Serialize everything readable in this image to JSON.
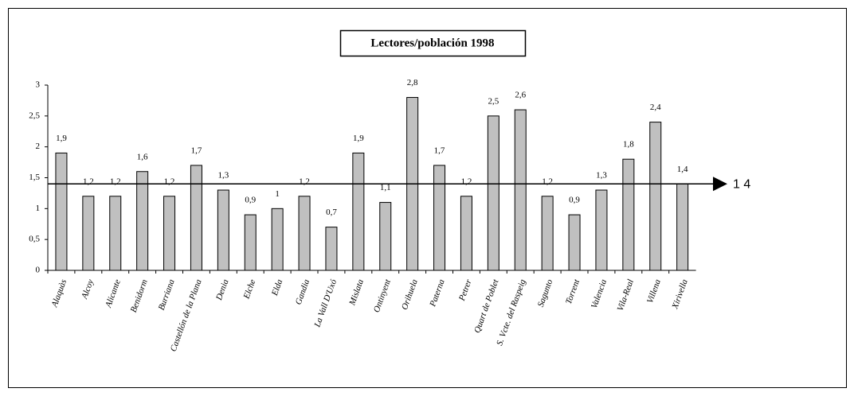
{
  "chart_data": {
    "type": "bar",
    "title": "Lectores/población 1998",
    "categories": [
      "Alaquàs",
      "Alcoy",
      "Alicante",
      "Benidorm",
      "Burriana",
      "Castellón de la Plana",
      "Denia",
      "Elche",
      "Elda",
      "Gandia",
      "La Vall D'Uxó",
      "Mislata",
      "Ontinyent",
      "Orihuela",
      "Paterna",
      "Petrer",
      "Quart de Poblet",
      "S. Vcte. del Raspeig",
      "Sagunto",
      "Torrent",
      "Valencia",
      "Vila-Real",
      "Villena",
      "Xirivella"
    ],
    "values": [
      1.9,
      1.2,
      1.2,
      1.6,
      1.2,
      1.7,
      1.3,
      0.9,
      1,
      1.2,
      0.7,
      1.9,
      1.1,
      2.8,
      1.7,
      1.2,
      2.5,
      2.6,
      1.2,
      0.9,
      1.3,
      1.8,
      2.4,
      1.4
    ],
    "value_labels": [
      "1,9",
      "1,2",
      "1,2",
      "1,6",
      "1,2",
      "1,7",
      "1,3",
      "0,9",
      "1",
      "1,2",
      "0,7",
      "1,9",
      "1,1",
      "2,8",
      "1,7",
      "1,2",
      "2,5",
      "2,6",
      "1,2",
      "0,9",
      "1,3",
      "1,8",
      "2,4",
      "1,4"
    ],
    "color": "#c0c0c0",
    "ylim": [
      0,
      3
    ],
    "yticks": [
      0,
      {
        "value": 0.5,
        "label": "0,5"
      },
      1,
      {
        "value": 1.5,
        "label": "1,5"
      },
      2,
      {
        "value": 2.5,
        "label": "2,5"
      },
      3
    ],
    "reference_line": {
      "value": 1.4,
      "label": "1 4"
    }
  }
}
